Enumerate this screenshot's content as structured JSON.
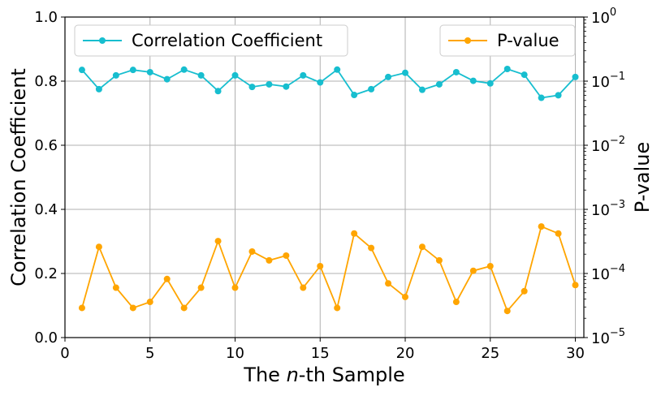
{
  "chart_data": {
    "type": "line",
    "xlabel_prefix": "The ",
    "xlabel_italic": "n",
    "xlabel_suffix": "-th Sample",
    "ylabel": "Correlation Coefficient",
    "y2label": "P-value",
    "xlim": [
      0,
      30.5
    ],
    "ylim": [
      0,
      1.0
    ],
    "y2lim_log10": [
      -5,
      0
    ],
    "xticks": [
      "0",
      "5",
      "10",
      "15",
      "20",
      "25",
      "30"
    ],
    "yticks": [
      "0.0",
      "0.2",
      "0.4",
      "0.6",
      "0.8",
      "1.0"
    ],
    "y2ticks": [
      {
        "base": "10",
        "exp": "−5"
      },
      {
        "base": "10",
        "exp": "−4"
      },
      {
        "base": "10",
        "exp": "−3"
      },
      {
        "base": "10",
        "exp": "−2"
      },
      {
        "base": "10",
        "exp": "−1"
      },
      {
        "base": "10",
        "exp": "0"
      }
    ],
    "grid": true,
    "x": [
      1,
      2,
      3,
      4,
      5,
      6,
      7,
      8,
      9,
      10,
      11,
      12,
      13,
      14,
      15,
      16,
      17,
      18,
      19,
      20,
      21,
      22,
      23,
      24,
      25,
      26,
      27,
      28,
      29,
      30
    ],
    "series": [
      {
        "name": "Correlation Coefficient",
        "axis": "left",
        "color": "#17becf",
        "legend_position": "top-left",
        "values": [
          0.835,
          0.775,
          0.818,
          0.835,
          0.828,
          0.806,
          0.836,
          0.818,
          0.769,
          0.818,
          0.782,
          0.79,
          0.783,
          0.818,
          0.796,
          0.836,
          0.757,
          0.775,
          0.813,
          0.826,
          0.773,
          0.79,
          0.828,
          0.801,
          0.793,
          0.838,
          0.82,
          0.748,
          0.756,
          0.813
        ]
      },
      {
        "name": "P-value",
        "axis": "right",
        "color": "#ffa500",
        "legend_position": "top-right",
        "values": [
          2.9e-05,
          0.00026,
          6e-05,
          2.9e-05,
          3.6e-05,
          8.2e-05,
          2.9e-05,
          6e-05,
          0.00032,
          6e-05,
          0.00022,
          0.00016,
          0.00019,
          6e-05,
          0.00013,
          2.9e-05,
          0.00042,
          0.00025,
          7e-05,
          4.3e-05,
          0.00026,
          0.00016,
          3.6e-05,
          0.00011,
          0.00013,
          2.6e-05,
          5.3e-05,
          0.00054,
          0.00042,
          6.6e-05
        ]
      }
    ]
  }
}
